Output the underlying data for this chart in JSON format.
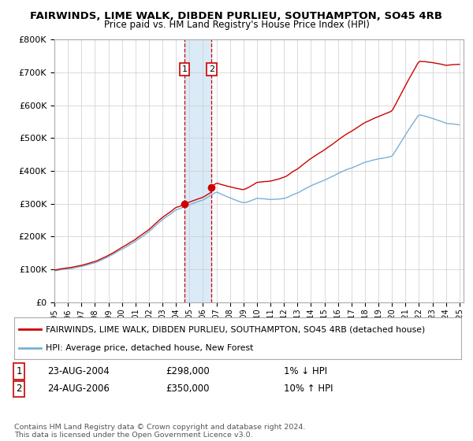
{
  "title": "FAIRWINDS, LIME WALK, DIBDEN PURLIEU, SOUTHAMPTON, SO45 4RB",
  "subtitle": "Price paid vs. HM Land Registry's House Price Index (HPI)",
  "legend_line1": "FAIRWINDS, LIME WALK, DIBDEN PURLIEU, SOUTHAMPTON, SO45 4RB (detached house)",
  "legend_line2": "HPI: Average price, detached house, New Forest",
  "sale1_date": "23-AUG-2004",
  "sale1_price": "£298,000",
  "sale1_hpi": "1% ↓ HPI",
  "sale1_year": 2004.63,
  "sale1_value": 298000,
  "sale2_date": "24-AUG-2006",
  "sale2_price": "£350,000",
  "sale2_hpi": "10% ↑ HPI",
  "sale2_year": 2006.63,
  "sale2_value": 350000,
  "footer": "Contains HM Land Registry data © Crown copyright and database right 2024.\nThis data is licensed under the Open Government Licence v3.0.",
  "red_color": "#cc0000",
  "blue_color": "#7ab0d4",
  "bg_color": "#ffffff",
  "grid_color": "#cccccc",
  "highlight_color": "#daeaf7"
}
